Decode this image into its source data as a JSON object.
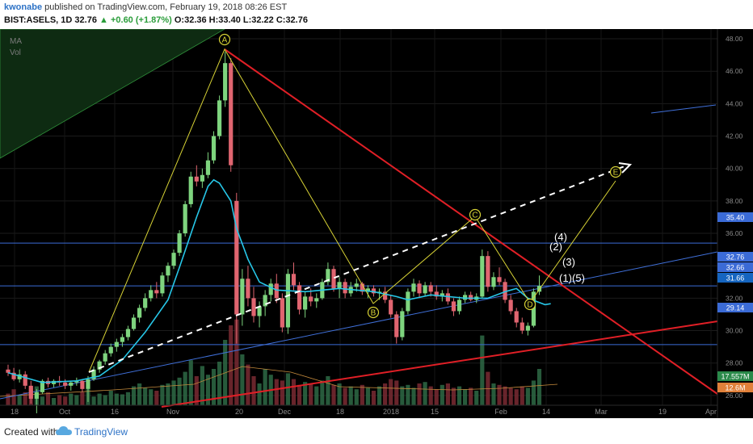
{
  "header": {
    "user": "kwonabe",
    "published": "published on TradingView.com, February 19, 2018 08:26 EST",
    "symbol": "BIST:ASELS, 1D",
    "last": "32.76",
    "change": "+0.60 (+1.87%)",
    "ohlc": "O:32.36 H:33.40 L:32.22 C:32.76"
  },
  "indicators": {
    "ma": "MA",
    "vol": "Vol"
  },
  "footer": {
    "created": "Created with",
    "brand": "TradingView"
  },
  "colors": {
    "up": "#7ed47e",
    "down": "#e06570",
    "ma": "#27c7e8",
    "pattern": "#d7d235",
    "trend_red": "#e01f26",
    "trend_blue": "#3f6fd8",
    "level": "#3b6bd6",
    "vol_up": "#2e6a45",
    "vol_down": "#7a2a33"
  },
  "chart_data": {
    "type": "candlestick",
    "y_axis": {
      "range": [
        24.6,
        48.6
      ],
      "ticks": [
        "48.00",
        "46.00",
        "44.00",
        "42.00",
        "40.00",
        "38.00",
        "36.00",
        "34.00",
        "32.00",
        "30.00",
        "28.00",
        "26.00"
      ]
    },
    "x_axis": {
      "ticks": [
        "18",
        "Oct",
        "16",
        "Nov",
        "20",
        "Dec",
        "18",
        "2018",
        "15",
        "Feb",
        "14",
        "Mar",
        "19",
        "Apr"
      ]
    },
    "price_labels": [
      {
        "value": 35.4,
        "text": "35.40",
        "color": "#3b6bd6"
      },
      {
        "value": 32.76,
        "text": "32.76",
        "color": "#3b6bd6"
      },
      {
        "value": 32.66,
        "text": "32.66",
        "color": "#3b6bd6"
      },
      {
        "value": 31.66,
        "text": "31.66",
        "color": "#1565c0"
      },
      {
        "value": 29.14,
        "text": "29.14",
        "color": "#3b6bd6"
      }
    ],
    "volume_labels": [
      {
        "text": "17.557M",
        "color": "#2a8a4a"
      },
      {
        "text": "12.6M",
        "color": "#e0803a"
      }
    ],
    "horizontal_levels": [
      35.4,
      32.76,
      29.14
    ],
    "pattern_points": [
      {
        "label": "A",
        "price": 47.2
      },
      {
        "label": "B",
        "price": 29.3
      },
      {
        "label": "C",
        "price": 35.0
      },
      {
        "label": "D",
        "price": 29.5
      },
      {
        "label": "E",
        "price": 38.4
      }
    ],
    "wave_labels": [
      "(4)",
      "(2)",
      "(3)",
      "(1)",
      "(5)"
    ],
    "candles": [
      {
        "o": 27.6,
        "h": 27.9,
        "l": 27.2,
        "c": 27.4
      },
      {
        "o": 27.4,
        "h": 27.7,
        "l": 26.9,
        "c": 27.0
      },
      {
        "o": 27.0,
        "h": 27.6,
        "l": 26.8,
        "c": 27.3
      },
      {
        "o": 27.3,
        "h": 27.5,
        "l": 26.4,
        "c": 26.6
      },
      {
        "o": 26.6,
        "h": 26.9,
        "l": 25.5,
        "c": 25.8
      },
      {
        "o": 25.8,
        "h": 26.4,
        "l": 24.9,
        "c": 26.2
      },
      {
        "o": 26.2,
        "h": 27.0,
        "l": 26.1,
        "c": 26.9
      },
      {
        "o": 26.9,
        "h": 27.1,
        "l": 26.5,
        "c": 26.7
      },
      {
        "o": 26.7,
        "h": 27.0,
        "l": 26.5,
        "c": 26.9
      },
      {
        "o": 26.9,
        "h": 27.2,
        "l": 26.6,
        "c": 26.8
      },
      {
        "o": 26.8,
        "h": 27.0,
        "l": 26.4,
        "c": 26.6
      },
      {
        "o": 26.6,
        "h": 26.9,
        "l": 26.3,
        "c": 26.8
      },
      {
        "o": 26.8,
        "h": 27.1,
        "l": 26.6,
        "c": 26.9
      },
      {
        "o": 26.9,
        "h": 27.0,
        "l": 26.2,
        "c": 26.4
      },
      {
        "o": 26.4,
        "h": 27.2,
        "l": 25.6,
        "c": 27.0
      },
      {
        "o": 27.0,
        "h": 27.8,
        "l": 26.9,
        "c": 27.6
      },
      {
        "o": 27.6,
        "h": 28.2,
        "l": 27.4,
        "c": 28.1
      },
      {
        "o": 28.1,
        "h": 28.8,
        "l": 27.9,
        "c": 28.6
      },
      {
        "o": 28.6,
        "h": 29.2,
        "l": 28.4,
        "c": 29.0
      },
      {
        "o": 29.0,
        "h": 29.5,
        "l": 28.7,
        "c": 29.3
      },
      {
        "o": 29.3,
        "h": 29.8,
        "l": 29.0,
        "c": 29.6
      },
      {
        "o": 29.6,
        "h": 30.3,
        "l": 29.4,
        "c": 30.1
      },
      {
        "o": 30.1,
        "h": 31.0,
        "l": 30.0,
        "c": 30.8
      },
      {
        "o": 30.8,
        "h": 31.6,
        "l": 30.5,
        "c": 31.4
      },
      {
        "o": 31.4,
        "h": 32.3,
        "l": 31.2,
        "c": 32.0
      },
      {
        "o": 32.0,
        "h": 32.8,
        "l": 31.8,
        "c": 32.5
      },
      {
        "o": 32.5,
        "h": 33.0,
        "l": 32.0,
        "c": 32.3
      },
      {
        "o": 32.3,
        "h": 33.6,
        "l": 32.1,
        "c": 33.4
      },
      {
        "o": 33.4,
        "h": 34.2,
        "l": 33.0,
        "c": 34.0
      },
      {
        "o": 34.0,
        "h": 35.0,
        "l": 33.8,
        "c": 34.8
      },
      {
        "o": 34.8,
        "h": 36.2,
        "l": 34.6,
        "c": 36.0
      },
      {
        "o": 36.0,
        "h": 38.0,
        "l": 35.8,
        "c": 37.8
      },
      {
        "o": 37.8,
        "h": 39.8,
        "l": 37.6,
        "c": 39.5
      },
      {
        "o": 39.5,
        "h": 40.2,
        "l": 38.9,
        "c": 39.2
      },
      {
        "o": 39.2,
        "h": 40.0,
        "l": 38.8,
        "c": 39.6
      },
      {
        "o": 39.6,
        "h": 41.0,
        "l": 39.4,
        "c": 40.5
      },
      {
        "o": 40.5,
        "h": 42.3,
        "l": 40.3,
        "c": 42.0
      },
      {
        "o": 42.0,
        "h": 44.5,
        "l": 41.8,
        "c": 44.2
      },
      {
        "o": 44.2,
        "h": 47.2,
        "l": 43.8,
        "c": 46.5
      },
      {
        "o": 46.5,
        "h": 46.8,
        "l": 39.8,
        "c": 40.2
      },
      {
        "o": 38.0,
        "h": 38.5,
        "l": 29.2,
        "c": 31.0
      },
      {
        "o": 31.0,
        "h": 33.8,
        "l": 30.3,
        "c": 33.2
      },
      {
        "o": 33.2,
        "h": 34.0,
        "l": 31.5,
        "c": 32.0
      },
      {
        "o": 32.0,
        "h": 32.7,
        "l": 30.5,
        "c": 30.9
      },
      {
        "o": 30.9,
        "h": 31.8,
        "l": 30.2,
        "c": 31.5
      },
      {
        "o": 31.5,
        "h": 32.5,
        "l": 30.9,
        "c": 32.2
      },
      {
        "o": 32.2,
        "h": 33.2,
        "l": 31.8,
        "c": 32.9
      },
      {
        "o": 32.9,
        "h": 33.5,
        "l": 31.7,
        "c": 32.0
      },
      {
        "o": 32.0,
        "h": 32.3,
        "l": 29.9,
        "c": 30.2
      },
      {
        "o": 30.2,
        "h": 33.8,
        "l": 29.8,
        "c": 33.5
      },
      {
        "o": 33.5,
        "h": 34.2,
        "l": 32.5,
        "c": 32.8
      },
      {
        "o": 32.8,
        "h": 33.0,
        "l": 31.0,
        "c": 31.3
      },
      {
        "o": 31.3,
        "h": 32.4,
        "l": 30.8,
        "c": 32.1
      },
      {
        "o": 32.1,
        "h": 32.6,
        "l": 31.5,
        "c": 31.8
      },
      {
        "o": 31.8,
        "h": 32.3,
        "l": 31.4,
        "c": 32.0
      },
      {
        "o": 32.0,
        "h": 33.2,
        "l": 31.9,
        "c": 33.0
      },
      {
        "o": 33.0,
        "h": 34.2,
        "l": 32.8,
        "c": 33.8
      },
      {
        "o": 33.8,
        "h": 34.0,
        "l": 32.4,
        "c": 32.6
      },
      {
        "o": 32.6,
        "h": 33.3,
        "l": 32.0,
        "c": 33.0
      },
      {
        "o": 33.0,
        "h": 33.2,
        "l": 32.0,
        "c": 32.3
      },
      {
        "o": 32.3,
        "h": 33.0,
        "l": 32.1,
        "c": 32.7
      },
      {
        "o": 32.7,
        "h": 33.2,
        "l": 32.4,
        "c": 32.9
      },
      {
        "o": 32.9,
        "h": 33.0,
        "l": 32.2,
        "c": 32.4
      },
      {
        "o": 32.4,
        "h": 32.8,
        "l": 32.0,
        "c": 32.6
      },
      {
        "o": 32.6,
        "h": 32.8,
        "l": 32.1,
        "c": 32.3
      },
      {
        "o": 32.3,
        "h": 32.6,
        "l": 31.9,
        "c": 32.4
      },
      {
        "o": 32.4,
        "h": 32.7,
        "l": 31.7,
        "c": 31.9
      },
      {
        "o": 31.9,
        "h": 32.2,
        "l": 30.8,
        "c": 31.0
      },
      {
        "o": 31.0,
        "h": 31.2,
        "l": 29.2,
        "c": 29.6
      },
      {
        "o": 29.6,
        "h": 31.4,
        "l": 29.4,
        "c": 31.2
      },
      {
        "o": 31.2,
        "h": 32.6,
        "l": 31.0,
        "c": 32.4
      },
      {
        "o": 32.4,
        "h": 33.2,
        "l": 32.1,
        "c": 32.9
      },
      {
        "o": 32.9,
        "h": 33.1,
        "l": 32.0,
        "c": 32.3
      },
      {
        "o": 32.3,
        "h": 33.0,
        "l": 32.1,
        "c": 32.8
      },
      {
        "o": 32.8,
        "h": 33.0,
        "l": 32.1,
        "c": 32.4
      },
      {
        "o": 32.4,
        "h": 32.8,
        "l": 31.9,
        "c": 32.1
      },
      {
        "o": 32.1,
        "h": 32.5,
        "l": 31.8,
        "c": 32.3
      },
      {
        "o": 32.3,
        "h": 32.6,
        "l": 31.6,
        "c": 31.8
      },
      {
        "o": 31.8,
        "h": 32.0,
        "l": 30.9,
        "c": 31.2
      },
      {
        "o": 31.2,
        "h": 32.1,
        "l": 31.0,
        "c": 31.9
      },
      {
        "o": 31.9,
        "h": 32.4,
        "l": 31.7,
        "c": 32.2
      },
      {
        "o": 32.2,
        "h": 32.4,
        "l": 31.8,
        "c": 31.9
      },
      {
        "o": 31.9,
        "h": 32.3,
        "l": 31.7,
        "c": 32.1
      },
      {
        "o": 32.1,
        "h": 35.0,
        "l": 32.0,
        "c": 34.6
      },
      {
        "o": 34.6,
        "h": 34.9,
        "l": 32.4,
        "c": 32.7
      },
      {
        "o": 32.7,
        "h": 33.6,
        "l": 32.5,
        "c": 33.3
      },
      {
        "o": 33.3,
        "h": 33.9,
        "l": 32.8,
        "c": 33.0
      },
      {
        "o": 33.0,
        "h": 33.2,
        "l": 31.7,
        "c": 31.9
      },
      {
        "o": 31.9,
        "h": 32.2,
        "l": 31.0,
        "c": 31.2
      },
      {
        "o": 31.2,
        "h": 31.4,
        "l": 30.2,
        "c": 30.5
      },
      {
        "o": 30.5,
        "h": 30.8,
        "l": 29.8,
        "c": 30.0
      },
      {
        "o": 30.0,
        "h": 30.5,
        "l": 29.7,
        "c": 30.3
      },
      {
        "o": 30.3,
        "h": 32.6,
        "l": 30.2,
        "c": 32.4
      },
      {
        "o": 32.4,
        "h": 33.4,
        "l": 32.2,
        "c": 32.76
      }
    ],
    "volume": [
      16,
      22,
      14,
      18,
      24,
      26,
      12,
      18,
      10,
      14,
      12,
      16,
      14,
      18,
      22,
      12,
      16,
      14,
      20,
      16,
      15,
      18,
      26,
      30,
      24,
      22,
      20,
      28,
      30,
      34,
      38,
      46,
      62,
      40,
      54,
      42,
      50,
      60,
      90,
      110,
      118,
      70,
      56,
      40,
      30,
      50,
      42,
      36,
      34,
      44,
      36,
      28,
      32,
      30,
      26,
      34,
      40,
      28,
      30,
      24,
      26,
      22,
      28,
      24,
      20,
      26,
      30,
      36,
      34,
      26,
      28,
      24,
      30,
      32,
      26,
      22,
      28,
      30,
      24,
      26,
      22,
      24,
      20,
      96,
      46,
      30,
      28,
      26,
      24,
      22,
      26,
      24,
      34,
      50
    ],
    "ma_points": [
      [
        0,
        27.4
      ],
      [
        6,
        26.8
      ],
      [
        12,
        26.9
      ],
      [
        16,
        27.2
      ],
      [
        20,
        28.2
      ],
      [
        24,
        29.9
      ],
      [
        28,
        31.9
      ],
      [
        30,
        33.9
      ],
      [
        33,
        37.0
      ],
      [
        35,
        38.9
      ],
      [
        36,
        39.3
      ],
      [
        37,
        39.1
      ],
      [
        39,
        38.0
      ],
      [
        40,
        36.3
      ],
      [
        42,
        34.4
      ],
      [
        44,
        33.0
      ],
      [
        47,
        32.5
      ],
      [
        52,
        32.4
      ],
      [
        58,
        32.6
      ],
      [
        64,
        32.4
      ],
      [
        68,
        32.1
      ],
      [
        70,
        31.9
      ],
      [
        74,
        32.2
      ],
      [
        80,
        32.0
      ],
      [
        84,
        32.0
      ],
      [
        87,
        32.4
      ],
      [
        89,
        32.6
      ],
      [
        91,
        32.0
      ],
      [
        94,
        31.6
      ],
      [
        95,
        31.66
      ]
    ]
  }
}
